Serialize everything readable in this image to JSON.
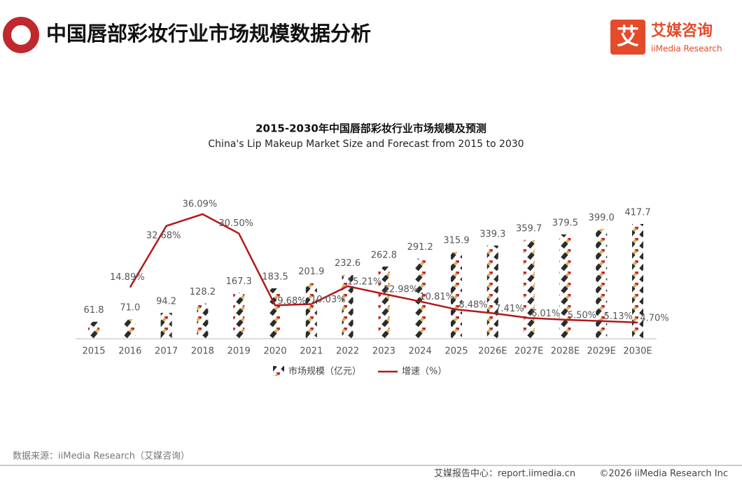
{
  "header": {
    "title": "中国唇部彩妆行业市场规模数据分析",
    "logo_mark": "艾",
    "logo_name": "艾媒咨询",
    "logo_en": "iiMedia Research"
  },
  "chart_data": {
    "type": "bar",
    "title": "2015-2030年中国唇部彩妆行业市场规模及预测",
    "subtitle": "China's Lip Makeup Market Size and Forecast from 2015 to 2030",
    "categories": [
      "2015",
      "2016",
      "2017",
      "2018",
      "2019",
      "2020",
      "2021",
      "2022",
      "2023",
      "2024",
      "2025",
      "2026E",
      "2027E",
      "2028E",
      "2029E",
      "2030E"
    ],
    "series": [
      {
        "name": "市场规模（亿元）",
        "type": "bar",
        "color": "#2b2b2b",
        "values": [
          61.8,
          71.0,
          94.2,
          128.2,
          167.3,
          183.5,
          201.9,
          232.6,
          262.8,
          291.2,
          315.9,
          339.3,
          359.7,
          379.5,
          399.0,
          417.7
        ],
        "value_labels": [
          "61.8",
          "71.0",
          "94.2",
          "128.2",
          "167.3",
          "183.5",
          "201.9",
          "232.6",
          "262.8",
          "291.2",
          "315.9",
          "339.3",
          "359.7",
          "379.5",
          "399.0",
          "417.7"
        ]
      },
      {
        "name": "增速（%）",
        "type": "line",
        "color": "#b01a1a",
        "values": [
          null,
          14.89,
          32.68,
          36.09,
          30.5,
          9.68,
          10.03,
          15.21,
          12.98,
          10.81,
          8.48,
          7.41,
          6.01,
          5.5,
          5.13,
          4.7
        ],
        "value_labels": [
          null,
          "14.89%",
          "32.68%",
          "36.09%",
          "30.50%",
          "9.68%",
          "10.03%",
          "15.21%",
          "12.98%",
          "10.81%",
          "8.48%",
          "7.41%",
          "6.01%",
          "5.50%",
          "5.13%",
          "4.70%"
        ]
      }
    ]
  },
  "footer": {
    "source": "数据来源：iiMedia Research（艾媒咨询）",
    "report": "艾媒报告中心：report.iimedia.cn",
    "copyright": "©2026  iiMedia Research  Inc"
  }
}
